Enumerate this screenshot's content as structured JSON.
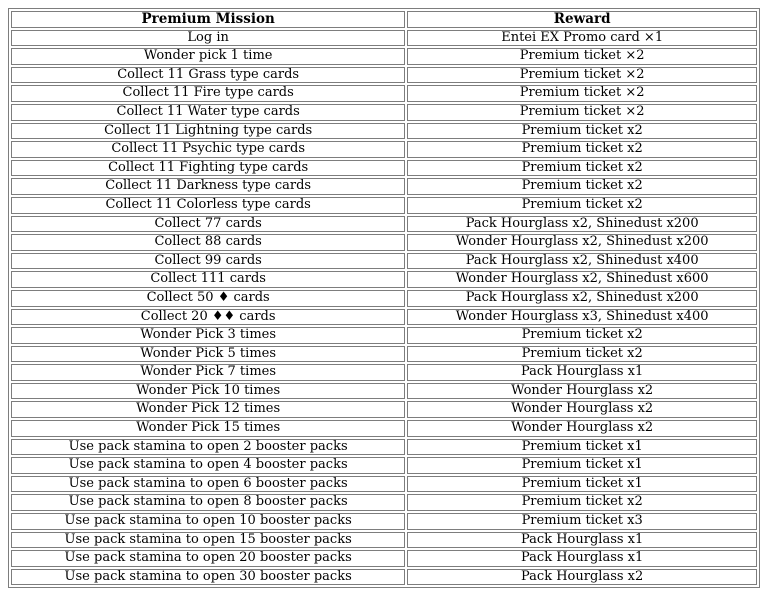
{
  "colors": {
    "border": "#7d7d7d",
    "text": "#000000",
    "background": "#ffffff"
  },
  "table": {
    "columns": [
      "Premium Mission",
      "Reward"
    ],
    "rows": [
      [
        "Log in",
        "Entei EX Promo card ×1"
      ],
      [
        "Wonder pick 1 time",
        "Premium ticket ×2"
      ],
      [
        "Collect 11 Grass type cards",
        "Premium ticket ×2"
      ],
      [
        "Collect 11 Fire type cards",
        "Premium ticket ×2"
      ],
      [
        "Collect 11 Water type cards",
        "Premium ticket ×2"
      ],
      [
        "Collect 11 Lightning type cards",
        "Premium ticket x2"
      ],
      [
        "Collect 11 Psychic type cards",
        "Premium ticket x2"
      ],
      [
        "Collect 11 Fighting type cards",
        "Premium ticket x2"
      ],
      [
        "Collect 11 Darkness type cards",
        "Premium ticket x2"
      ],
      [
        "Collect 11 Colorless type cards",
        "Premium ticket x2"
      ],
      [
        "Collect 77 cards",
        "Pack Hourglass x2, Shinedust x200"
      ],
      [
        "Collect 88 cards",
        "Wonder Hourglass x2, Shinedust x200"
      ],
      [
        "Collect 99 cards",
        "Pack Hourglass x2, Shinedust x400"
      ],
      [
        "Collect 111 cards",
        "Wonder Hourglass x2, Shinedust x600"
      ],
      [
        "Collect 50 ♦ cards",
        "Pack Hourglass x2, Shinedust x200"
      ],
      [
        "Collect 20 ♦♦ cards",
        "Wonder Hourglass x3, Shinedust x400"
      ],
      [
        "Wonder Pick 3 times",
        "Premium ticket x2"
      ],
      [
        "Wonder Pick 5 times",
        "Premium ticket x2"
      ],
      [
        "Wonder Pick 7 times",
        "Pack Hourglass x1"
      ],
      [
        "Wonder Pick 10 times",
        "Wonder Hourglass x2"
      ],
      [
        "Wonder Pick 12 times",
        "Wonder Hourglass x2"
      ],
      [
        "Wonder Pick 15 times",
        "Wonder Hourglass x2"
      ],
      [
        "Use pack stamina to open 2 booster packs",
        "Premium ticket x1"
      ],
      [
        "Use pack stamina to open 4 booster packs",
        "Premium ticket x1"
      ],
      [
        "Use pack stamina to open 6 booster packs",
        "Premium ticket x1"
      ],
      [
        "Use pack stamina to open 8 booster packs",
        "Premium ticket x2"
      ],
      [
        "Use pack stamina to open 10 booster packs",
        "Premium ticket x3"
      ],
      [
        "Use pack stamina to open 15 booster packs",
        "Pack Hourglass x1"
      ],
      [
        "Use pack stamina to open 20 booster packs",
        "Pack Hourglass x1"
      ],
      [
        "Use pack stamina to open 30 booster packs",
        "Pack Hourglass x2"
      ]
    ]
  }
}
